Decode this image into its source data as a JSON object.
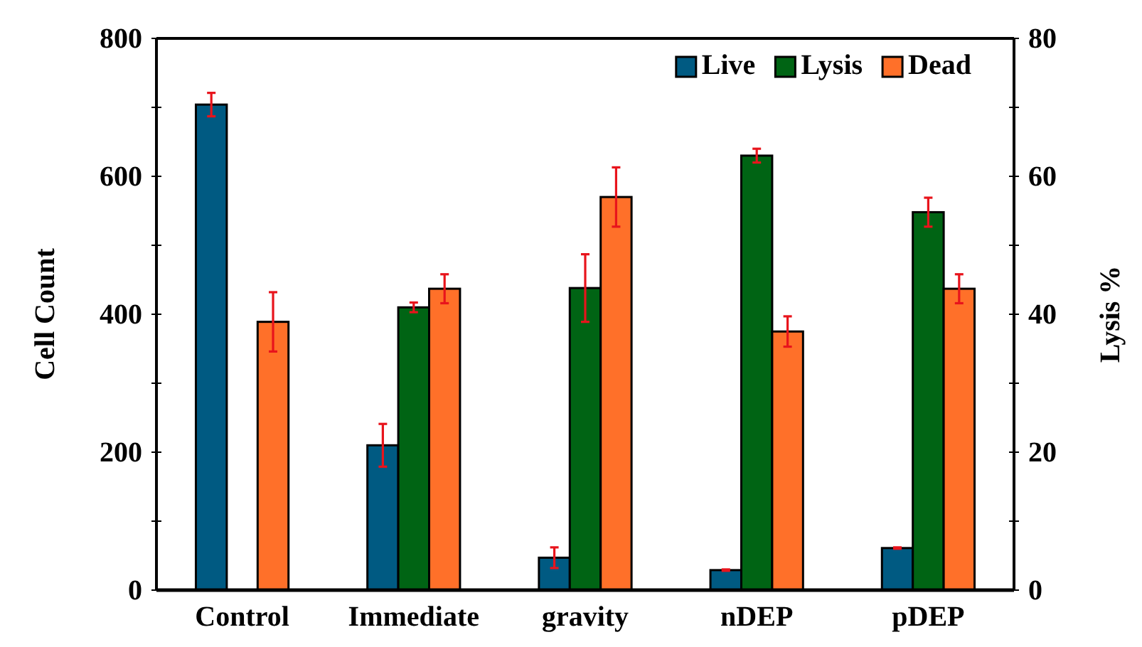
{
  "chart_data": {
    "type": "bar",
    "categories": [
      "Control",
      "Immediate",
      "gravity",
      "nDEP",
      "pDEP"
    ],
    "ylabel": "Cell Count",
    "y2label": "Lysis %",
    "ylim": [
      0,
      800
    ],
    "yticks": [
      0,
      {
        "value": 100,
        "label": null
      },
      200,
      {
        "value": 300,
        "label": null
      },
      400,
      {
        "value": 500,
        "label": null
      },
      600,
      {
        "value": 700,
        "label": null
      },
      800
    ],
    "y2lim": [
      0,
      80
    ],
    "y2ticks": [
      0,
      {
        "value": 10,
        "label": null
      },
      20,
      {
        "value": 30,
        "label": null
      },
      40,
      {
        "value": 50,
        "label": null
      },
      60,
      {
        "value": 70,
        "label": null
      },
      80
    ],
    "legend": "top right",
    "grid": false,
    "series": [
      {
        "name": "Live",
        "color": "#005a82",
        "values": [
          704,
          210,
          47,
          29,
          61
        ],
        "errors": [
          17,
          31,
          15,
          1,
          1
        ]
      },
      {
        "name": "Lysis",
        "color": "#006414",
        "axis": "y2",
        "values": [
          null,
          41.0,
          43.8,
          63.0,
          54.8
        ],
        "errors": [
          null,
          0.7,
          4.9,
          1.0,
          2.1
        ]
      },
      {
        "name": "Dead",
        "color": "#ff7029",
        "values": [
          389,
          437,
          570,
          375,
          437
        ],
        "errors": [
          43,
          21,
          43,
          22,
          21
        ]
      }
    ]
  }
}
